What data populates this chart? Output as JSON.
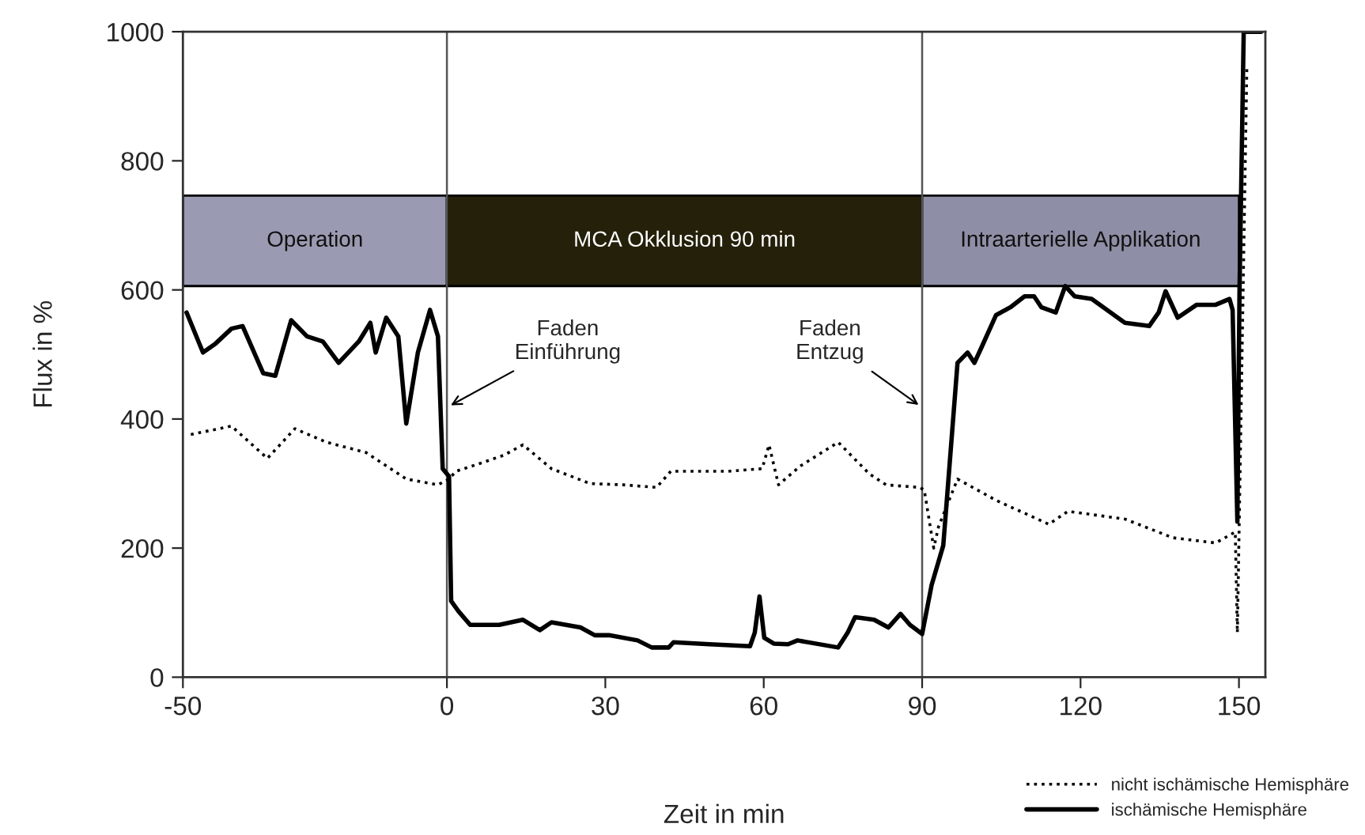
{
  "chart_data": {
    "type": "line",
    "xlabel": "Zeit in min",
    "ylabel": "Flux in %",
    "xlim": [
      -50,
      155
    ],
    "xticks": [
      -50,
      0,
      30,
      60,
      90,
      120,
      150
    ],
    "ylim": [
      0,
      1000
    ],
    "yticks": [
      0,
      200,
      400,
      600,
      800,
      1000
    ],
    "grid": false,
    "legend": "bottom right",
    "marker": "none",
    "series": [
      {
        "name": "nicht ischämische Hemisphäre",
        "color": "#000000",
        "line_style": "dotted",
        "x": [
          -48.5,
          -40.8,
          -34.0,
          -28.8,
          -22.8,
          -15.3,
          -7.7,
          -1.7,
          0.4,
          1.7,
          6.2,
          10.8,
          14.4,
          19.8,
          27.1,
          33.4,
          39.7,
          42.4,
          53.3,
          59.7,
          61.0,
          62.8,
          66.9,
          74.1,
          80.0,
          83.2,
          89.5,
          90.4,
          92.2,
          93.1,
          96.7,
          104.0,
          114.0,
          117.6,
          128.4,
          137.5,
          145.6,
          149.3,
          149.7,
          151.5
        ],
        "values": [
          376,
          389,
          339,
          385,
          364,
          348,
          307,
          298,
          307,
          319,
          331,
          344,
          360,
          323,
          300,
          298,
          294,
          319,
          319,
          323,
          360,
          298,
          327,
          364,
          315,
          298,
          294,
          290,
          200,
          233,
          307,
          274,
          237,
          257,
          245,
          216,
          208,
          225,
          69,
          947
        ]
      },
      {
        "name": "ischämische Hemisphäre",
        "color": "#000000",
        "line_style": "solid",
        "x": [
          -49.3,
          -46.2,
          -43.8,
          -40.8,
          -38.7,
          -34.8,
          -32.5,
          -29.5,
          -26.5,
          -23.5,
          -20.5,
          -16.7,
          -14.5,
          -13.5,
          -11.5,
          -9.2,
          -7.7,
          -5.5,
          -3.2,
          -1.7,
          -0.8,
          0.4,
          0.8,
          2.2,
          4.4,
          9.9,
          14.4,
          17.6,
          19.8,
          25.3,
          28.0,
          30.7,
          36.1,
          38.8,
          42.0,
          42.9,
          49.7,
          57.4,
          58.3,
          59.2,
          60.1,
          61.9,
          64.6,
          66.4,
          74.1,
          75.9,
          77.3,
          80.9,
          83.6,
          85.9,
          87.7,
          90.0,
          91.8,
          94.0,
          94.9,
          96.7,
          98.6,
          99.9,
          101.3,
          104.0,
          106.7,
          109.4,
          111.2,
          112.6,
          115.3,
          117.1,
          118.9,
          122.1,
          128.4,
          133.0,
          134.8,
          136.1,
          138.4,
          142.0,
          145.6,
          148.2,
          148.8,
          149.7,
          150.1,
          150.9,
          154.2
        ],
        "values": [
          565,
          503,
          517,
          540,
          544,
          471,
          467,
          553,
          528,
          520,
          487,
          520,
          549,
          503,
          557,
          528,
          393,
          503,
          569,
          528,
          323,
          311,
          118,
          102,
          81,
          81,
          89,
          73,
          85,
          77,
          65,
          65,
          57,
          46,
          46,
          54,
          51,
          48,
          69,
          125,
          61,
          52,
          51,
          57,
          46,
          69,
          93,
          89,
          77,
          98,
          81,
          67,
          143,
          204,
          298,
          487,
          503,
          487,
          512,
          561,
          573,
          590,
          590,
          573,
          565,
          606,
          590,
          586,
          549,
          544,
          565,
          598,
          557,
          577,
          577,
          586,
          569,
          241,
          594,
          1000,
          1000
        ]
      }
    ],
    "bands": [
      {
        "axis": "x",
        "from": -50,
        "to": 0,
        "label": "Operation",
        "color": "#9a9ab2"
      },
      {
        "axis": "x",
        "from": 0,
        "to": 90,
        "label": "MCA Okklusion 90 min",
        "color": "#24200a"
      },
      {
        "axis": "x",
        "from": 90,
        "to": 150,
        "label": "Intraarterielle Applikation",
        "color": "#8e8ea6"
      }
    ],
    "ref_lines": [
      {
        "axis": "x",
        "value": 0,
        "color": "#555555"
      },
      {
        "axis": "x",
        "value": 90,
        "color": "#555555"
      }
    ],
    "annotations": [
      {
        "text": "Faden\nEinführung",
        "x": 0,
        "y": 418
      },
      {
        "text": "Faden\nEntzug",
        "x": 90,
        "y": 418
      }
    ]
  }
}
